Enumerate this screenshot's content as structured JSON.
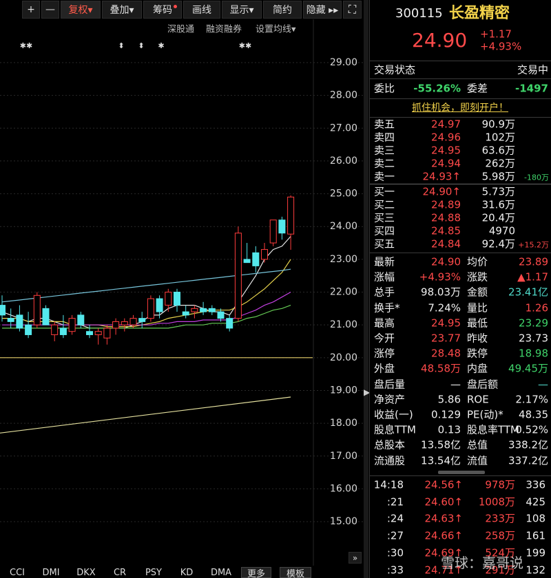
{
  "toolbar": {
    "buttons": [
      "+",
      "—",
      "复权▾",
      "叠加▾",
      "筹码",
      "画线",
      "显示▾",
      "简约",
      "隐藏 ▸▸"
    ],
    "links": [
      "深股通",
      "融资融券",
      "设置均线▾"
    ]
  },
  "markers": [
    "✱✱",
    "⬍",
    "⬍",
    "✱",
    "✱✱"
  ],
  "chart_data": {
    "type": "candlestick",
    "ylim": [
      14.12,
      29.65
    ],
    "yticks": [
      {
        "value": 29,
        "label": "29.00"
      },
      {
        "value": 28,
        "label": "28.00"
      },
      {
        "value": 27,
        "label": "27.00"
      },
      {
        "value": 26,
        "label": "26.00"
      },
      {
        "value": 25,
        "label": "25.00"
      },
      {
        "value": 24,
        "label": "24.00"
      },
      {
        "value": 23,
        "label": "23.00"
      },
      {
        "value": 22,
        "label": "22.00"
      },
      {
        "value": 21,
        "label": "21.00"
      },
      {
        "value": 20,
        "label": "20.00"
      },
      {
        "value": 19,
        "label": "19.00"
      },
      {
        "value": 18,
        "label": "18.00"
      },
      {
        "value": 17,
        "label": "17.00"
      },
      {
        "value": 16,
        "label": "16.00"
      },
      {
        "value": 15,
        "label": "15.00"
      }
    ],
    "grid": true,
    "up_color": "#ff3c3c",
    "down_color": "#54e8ec",
    "open": [
      21.6,
      21.2,
      21.3,
      21.0,
      21.0,
      21.5,
      20.7,
      20.9,
      20.8,
      21.3,
      20.8,
      20.7,
      20.6,
      20.9,
      21.0,
      21.0,
      21.2,
      21.2,
      21.8,
      21.6,
      22.0,
      21.4,
      21.4,
      21.5,
      21.5,
      21.4,
      21.2,
      21.2,
      23.0,
      23.2,
      23.0,
      23.5,
      24.2,
      23.77
    ],
    "high": [
      21.9,
      21.5,
      21.6,
      21.4,
      22.0,
      21.6,
      21.1,
      21.3,
      21.3,
      21.4,
      21.0,
      20.9,
      21.0,
      21.2,
      21.2,
      21.3,
      21.4,
      21.9,
      21.9,
      22.1,
      22.1,
      21.6,
      21.6,
      21.7,
      21.6,
      21.5,
      21.3,
      24.0,
      23.5,
      23.4,
      23.5,
      24.2,
      24.3,
      24.95
    ],
    "low": [
      21.1,
      20.9,
      20.8,
      20.6,
      20.9,
      21.0,
      20.5,
      20.6,
      20.7,
      20.9,
      20.6,
      20.4,
      20.4,
      20.7,
      20.8,
      20.9,
      20.9,
      21.1,
      21.2,
      21.4,
      21.4,
      21.2,
      21.2,
      21.3,
      21.3,
      21.1,
      20.8,
      21.1,
      22.9,
      22.6,
      22.9,
      23.4,
      23.6,
      23.29
    ],
    "close": [
      21.3,
      21.1,
      20.9,
      20.7,
      21.9,
      21.0,
      21.0,
      20.7,
      21.2,
      21.0,
      20.7,
      20.8,
      20.9,
      21.1,
      21.1,
      21.2,
      21.1,
      21.8,
      21.4,
      22.0,
      21.6,
      21.3,
      21.5,
      21.4,
      21.4,
      21.2,
      20.9,
      23.8,
      22.9,
      22.8,
      23.3,
      24.2,
      23.8,
      24.9
    ],
    "series": [
      {
        "color": "#e6e6e6",
        "values": [
          21.4,
          21.3,
          21.2,
          21.1,
          21.2,
          21.2,
          21.1,
          21.0,
          21.0,
          21.0,
          20.9,
          20.9,
          20.9,
          20.9,
          20.9,
          21.0,
          21.1,
          21.3,
          21.3,
          21.5,
          21.6,
          21.6,
          21.6,
          21.5,
          21.4,
          21.4,
          21.3,
          21.7,
          22.1,
          22.5,
          23.0,
          23.3,
          23.4,
          23.7
        ]
      },
      {
        "color": "#e8d44d",
        "values": [
          21.2,
          21.2,
          21.2,
          21.1,
          21.1,
          21.1,
          21.1,
          21.1,
          21.0,
          21.0,
          21.0,
          21.0,
          20.95,
          20.95,
          20.95,
          20.95,
          21.0,
          21.05,
          21.1,
          21.2,
          21.25,
          21.3,
          21.35,
          21.4,
          21.45,
          21.45,
          21.45,
          21.55,
          21.7,
          21.9,
          22.1,
          22.35,
          22.6,
          23.0
        ]
      },
      {
        "color": "#c23fe0",
        "values": [
          21.0,
          21.0,
          21.0,
          21.0,
          21.0,
          21.0,
          21.0,
          21.0,
          21.0,
          21.0,
          21.0,
          21.0,
          21.0,
          21.0,
          21.0,
          21.0,
          21.0,
          21.0,
          21.05,
          21.05,
          21.1,
          21.1,
          21.1,
          21.15,
          21.15,
          21.15,
          21.15,
          21.25,
          21.35,
          21.45,
          21.6,
          21.7,
          21.85,
          22.0
        ]
      },
      {
        "color": "#66cc55",
        "values": [
          20.9,
          20.9,
          20.9,
          20.9,
          20.9,
          20.9,
          20.9,
          20.9,
          20.9,
          20.9,
          20.9,
          20.9,
          20.9,
          20.9,
          20.9,
          20.9,
          20.9,
          20.9,
          20.9,
          20.9,
          20.95,
          21.0,
          21.0,
          21.0,
          21.05,
          21.05,
          21.05,
          21.1,
          21.2,
          21.25,
          21.35,
          21.45,
          21.5,
          21.6
        ]
      },
      {
        "color": "#78c6dc",
        "values": [
          21.7,
          21.73,
          21.76,
          21.79,
          21.82,
          21.85,
          21.88,
          21.91,
          21.94,
          21.97,
          22.0,
          22.03,
          22.06,
          22.09,
          22.12,
          22.15,
          22.18,
          22.21,
          22.24,
          22.27,
          22.3,
          22.33,
          22.36,
          22.39,
          22.42,
          22.45,
          22.48,
          22.51,
          22.54,
          22.57,
          22.6,
          22.63,
          22.66,
          22.7
        ]
      },
      {
        "color": "#e6e2a0",
        "x": [
          -0.3,
          33
        ],
        "values": [
          17.7,
          18.8
        ]
      }
    ],
    "reference_line": 20,
    "reference_color": "#e8cf6a"
  },
  "tabs": [
    "CCI",
    "DMI",
    "DKX",
    "CR",
    "PSY",
    "KD",
    "DMA",
    "更多",
    "模板"
  ],
  "quote": {
    "code": "300115",
    "name": "长盈精密",
    "price": "24.90",
    "change": "+1.17",
    "change_pct": "+4.93%"
  },
  "status": {
    "label": "交易状态",
    "value": "交易中"
  },
  "ratio": [
    {
      "label": "委比",
      "value": "-55.26%"
    },
    {
      "label": "委差",
      "value": "-1497"
    }
  ],
  "promo": "抓住机会，即刻开户！",
  "order_book": [
    {
      "label": "卖五",
      "price": "24.97",
      "volume": "90.9万"
    },
    {
      "label": "卖四",
      "price": "24.96",
      "volume": "102万"
    },
    {
      "label": "卖三",
      "price": "24.95",
      "volume": "63.6万"
    },
    {
      "label": "卖二",
      "price": "24.94",
      "volume": "262万"
    },
    {
      "label": "卖一",
      "price": "24.93↑",
      "volume": "5.98万",
      "change": "-180万"
    },
    {
      "label": "买一",
      "price": "24.90↑",
      "volume": "5.73万"
    },
    {
      "label": "买二",
      "price": "24.89",
      "volume": "31.6万"
    },
    {
      "label": "买三",
      "price": "24.88",
      "volume": "20.4万"
    },
    {
      "label": "买四",
      "price": "24.85",
      "volume": "4970"
    },
    {
      "label": "买五",
      "price": "24.84",
      "volume": "92.4万",
      "change": "+15.2万"
    }
  ],
  "stats": [
    [
      {
        "label": "最新",
        "value": "24.90",
        "tone": "up"
      },
      {
        "label": "均价",
        "value": "23.89",
        "tone": "up"
      }
    ],
    [
      {
        "label": "涨幅",
        "value": "+4.93%",
        "tone": "up"
      },
      {
        "label": "涨跌",
        "value": "▲1.17",
        "tone": "up"
      }
    ],
    [
      {
        "label": "总手",
        "value": "98.03万",
        "tone": "flat"
      },
      {
        "label": "金额",
        "value": "23.41亿",
        "tone": "cyan"
      }
    ],
    [
      {
        "label": "换手*",
        "value": "7.24%",
        "tone": "flat"
      },
      {
        "label": "量比",
        "value": "1.26",
        "tone": "up"
      }
    ],
    [
      {
        "label": "最高",
        "value": "24.95",
        "tone": "up"
      },
      {
        "label": "最低",
        "value": "23.29",
        "tone": "down"
      }
    ],
    [
      {
        "label": "今开",
        "value": "23.77",
        "tone": "up"
      },
      {
        "label": "昨收",
        "value": "23.73",
        "tone": "flat"
      }
    ],
    [
      {
        "label": "涨停",
        "value": "28.48",
        "tone": "up"
      },
      {
        "label": "跌停",
        "value": "18.98",
        "tone": "down"
      }
    ],
    [
      {
        "label": "外盘",
        "value": "48.58万",
        "tone": "up"
      },
      {
        "label": "内盘",
        "value": "49.45万",
        "tone": "down"
      }
    ],
    [
      {
        "label": "盘后量",
        "value": "—",
        "tone": "flat"
      },
      {
        "label": "盘后额",
        "value": "—",
        "tone": "cyan"
      }
    ],
    [
      {
        "label": "净资产",
        "value": "5.86",
        "tone": "flat"
      },
      {
        "label": "ROE",
        "value": "2.17%",
        "tone": "flat"
      }
    ],
    [
      {
        "label": "收益(一)",
        "value": "0.129",
        "tone": "flat"
      },
      {
        "label": "PE(动)*",
        "value": "48.35",
        "tone": "flat"
      }
    ],
    [
      {
        "label": "股息TTM",
        "value": "0.13",
        "tone": "flat"
      },
      {
        "label": "股息率TTM",
        "value": "0.52%",
        "tone": "flat"
      }
    ],
    [
      {
        "label": "总股本",
        "value": "13.58亿",
        "tone": "flat"
      },
      {
        "label": "总值",
        "value": "338.2亿",
        "tone": "flat"
      }
    ],
    [
      {
        "label": "流通股",
        "value": "13.54亿",
        "tone": "flat"
      },
      {
        "label": "流值",
        "value": "337.2亿",
        "tone": "flat"
      }
    ]
  ],
  "trades": [
    {
      "time": "14:18",
      "price": "24.56↑",
      "volume": "978万",
      "count": "336"
    },
    {
      "time": ":21",
      "price": "24.60↑",
      "volume": "1008万",
      "count": "425"
    },
    {
      "time": ":24",
      "price": "24.63↑",
      "volume": "233万",
      "count": "108"
    },
    {
      "time": ":27",
      "price": "24.66↑",
      "volume": "258万",
      "count": "161"
    },
    {
      "time": ":30",
      "price": "24.69↑",
      "volume": "524万",
      "count": "199"
    },
    {
      "time": ":33",
      "price": "24.71↑",
      "volume": "291万",
      "count": "132"
    }
  ],
  "watermark": "雪球：嘉哥说"
}
